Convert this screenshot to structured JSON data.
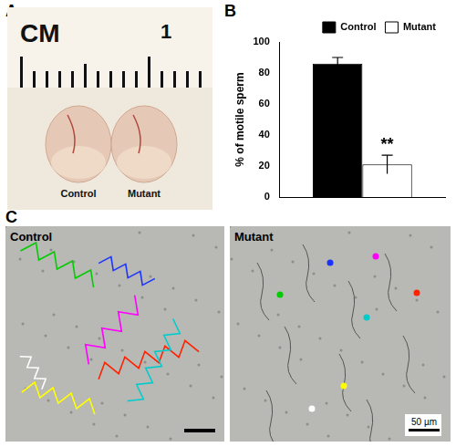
{
  "panels": {
    "A": {
      "letter": "A",
      "ruler_unit": "CM",
      "ruler_mark": "1",
      "labels": [
        "Control",
        "Mutant"
      ]
    },
    "B": {
      "letter": "B"
    },
    "C": {
      "letter": "C",
      "images": [
        "Control",
        "Mutant"
      ],
      "scale_bar": "50 µm"
    }
  },
  "chart_data": {
    "type": "bar",
    "categories": [
      null
    ],
    "y_label": "% of motile sperm",
    "series": [
      {
        "name": "Control",
        "color": "#000000",
        "values": [
          86
        ],
        "errors": [
          4
        ]
      },
      {
        "name": "Mutant",
        "color": "#ffffff",
        "values": [
          21
        ],
        "errors": [
          6
        ]
      }
    ],
    "annotations": [
      {
        "text": "**",
        "series": "Mutant"
      }
    ],
    "ylim": [
      0,
      100
    ],
    "yticks": [
      0,
      20,
      40,
      60,
      80,
      100
    ],
    "grid": false,
    "legend": "top-right",
    "tick_labels": "y"
  }
}
